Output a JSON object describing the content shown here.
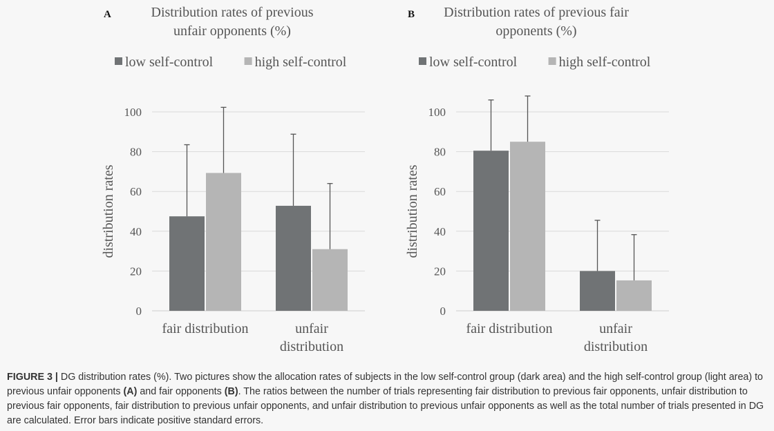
{
  "chart_data": [
    {
      "type": "bar",
      "panel_label": "A",
      "title_lines": [
        "Distribution rates of previous",
        "unfair opponents (%)"
      ],
      "ylabel": "distribution rates",
      "ylim": [
        0,
        100
      ],
      "yticks": [
        0,
        20,
        40,
        60,
        80,
        100
      ],
      "category_lines": [
        [
          "fair distribution"
        ],
        [
          "unfair",
          "distribution"
        ]
      ],
      "legend_position": "top",
      "grid": true,
      "series": [
        {
          "name": "low self-control",
          "color": "#707375",
          "values": [
            47.5,
            52.8
          ],
          "errors": [
            36,
            36
          ]
        },
        {
          "name": "high self-control",
          "color": "#b5b5b5",
          "values": [
            69.3,
            31
          ],
          "errors": [
            33,
            33
          ]
        }
      ]
    },
    {
      "type": "bar",
      "panel_label": "B",
      "title_lines": [
        "Distribution rates of previous fair",
        "opponents (%)"
      ],
      "ylabel": "distribution rates",
      "ylim": [
        0,
        100
      ],
      "yticks": [
        0,
        20,
        40,
        60,
        80,
        100
      ],
      "category_lines": [
        [
          "fair distribution"
        ],
        [
          "unfair",
          "distribution"
        ]
      ],
      "legend_position": "top",
      "grid": true,
      "series": [
        {
          "name": "low self-control",
          "color": "#707375",
          "values": [
            80.5,
            20
          ],
          "errors": [
            25.5,
            25.5
          ]
        },
        {
          "name": "high self-control",
          "color": "#b5b5b5",
          "values": [
            85,
            15.3
          ],
          "errors": [
            23,
            23
          ]
        }
      ]
    }
  ],
  "caption": {
    "figure_label": "FIGURE 3 |",
    "part1": " DG distribution rates (%). Two pictures show the allocation rates of subjects in the low self-control group (dark area) and the high self-control group (light area) to previous unfair opponents ",
    "ref_a": "(A)",
    "part2": " and fair opponents ",
    "ref_b": "(B)",
    "part3": ". The ratios between the number of trials representing fair distribution to previous fair opponents, unfair distribution to previous fair opponents, fair distribution to previous unfair opponents, and unfair distribution to previous unfair opponents as well as the total number of trials presented in DG are calculated. Error bars indicate positive standard errors."
  }
}
